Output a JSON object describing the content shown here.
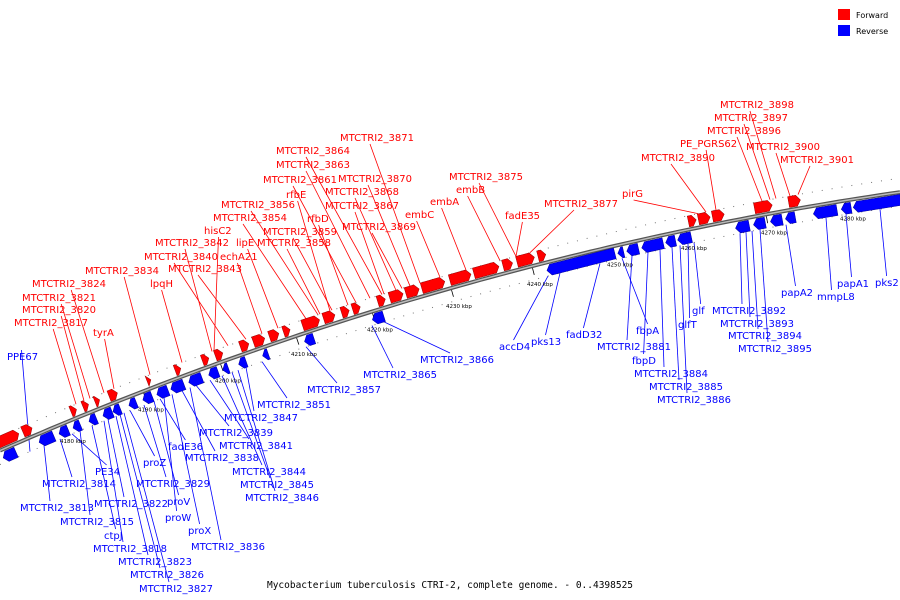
{
  "legend": {
    "forward": {
      "label": "Forward",
      "color": "#ff0000"
    },
    "reverse": {
      "label": "Reverse",
      "color": "#0000ff"
    }
  },
  "caption": "Mycobacterium tuberculosis CTRI-2, complete genome. - 0..4398525",
  "ticks": [
    "4180 kbp",
    "4190 kbp",
    "4200 kbp",
    "4210 kbp",
    "4220 kbp",
    "4230 kbp",
    "4240 kbp",
    "4250 kbp",
    "4260 kbp",
    "4270 kbp",
    "4280 kbp"
  ],
  "forward_labels": [
    "MTCTRI2_3817",
    "MTCTRI2_3820",
    "MTCTRI2_3821",
    "MTCTRI2_3824",
    "tyrA",
    "MTCTRI2_3834",
    "lpqH",
    "MTCTRI2_3843",
    "MTCTRI2_3840",
    "MTCTRI2_3842",
    "echA21",
    "lipE",
    "hisC2",
    "MTCTRI2_3854",
    "MTCTRI2_3856",
    "rfbE",
    "rfbD",
    "MTCTRI2_3858",
    "MTCTRI2_3859",
    "MTCTRI2_3861",
    "MTCTRI2_3863",
    "MTCTRI2_3864",
    "MTCTRI2_3867",
    "MTCTRI2_3868",
    "MTCTRI2_3869",
    "MTCTRI2_3870",
    "MTCTRI2_3871",
    "embC",
    "embA",
    "embB",
    "MTCTRI2_3875",
    "fadE35",
    "MTCTRI2_3877",
    "pirG",
    "MTCTRI2_3890",
    "PE_PGRS62",
    "MTCTRI2_3896",
    "MTCTRI2_3897",
    "MTCTRI2_3898",
    "MTCTRI2_3900",
    "MTCTRI2_3901"
  ],
  "reverse_labels": [
    "PPE67",
    "PE34",
    "MTCTRI2_3813",
    "MTCTRI2_3814",
    "MTCTRI2_3815",
    "ctpJ",
    "MTCTRI2_3818",
    "MTCTRI2_3823",
    "MTCTRI2_3826",
    "MTCTRI2_3827",
    "MTCTRI2_3822",
    "proZ",
    "MTCTRI2_3829",
    "proV",
    "proW",
    "proX",
    "MTCTRI2_3836",
    "fadE36",
    "MTCTRI2_3838",
    "MTCTRI2_3839",
    "MTCTRI2_3841",
    "MTCTRI2_3844",
    "MTCTRI2_3845",
    "MTCTRI2_3846",
    "MTCTRI2_3847",
    "MTCTRI2_3851",
    "MTCTRI2_3857",
    "MTCTRI2_3865",
    "MTCTRI2_3866",
    "accD4",
    "pks13",
    "fadD32",
    "fbpA",
    "MTCTRI2_3881",
    "fbpD",
    "MTCTRI2_3884",
    "MTCTRI2_3885",
    "MTCTRI2_3886",
    "glfT",
    "glf",
    "MTCTRI2_3892",
    "MTCTRI2_3893",
    "MTCTRI2_3894",
    "MTCTRI2_3895",
    "papA2",
    "mmpL8",
    "papA1",
    "pks2"
  ]
}
